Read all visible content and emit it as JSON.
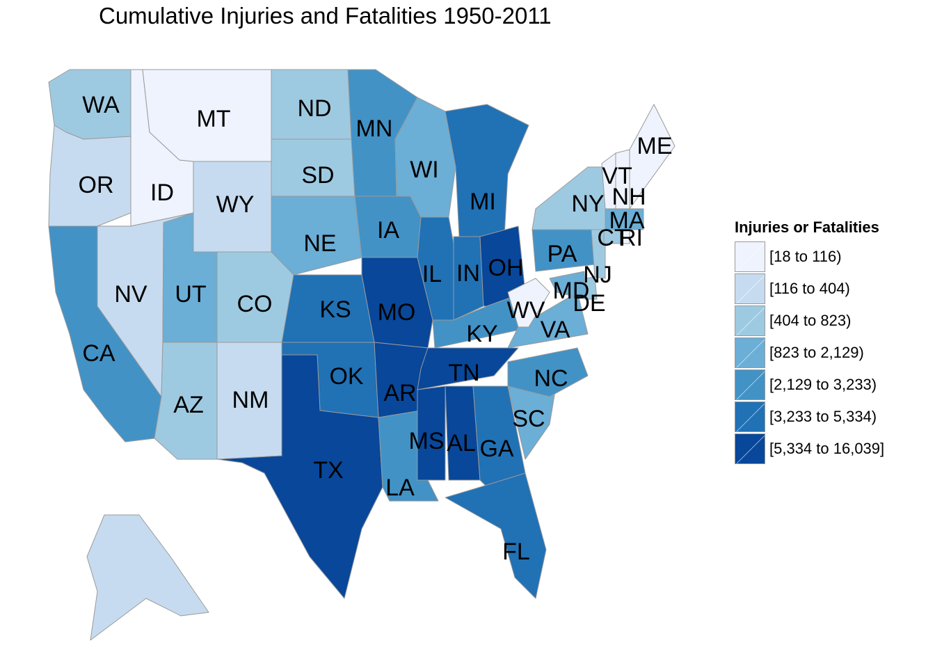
{
  "title": "Cumulative Injuries and Fatalities 1950-2011",
  "legend": {
    "title": "Injuries or Fatalities",
    "bins": [
      {
        "label": "[18 to 116)",
        "color": "#eef3fd"
      },
      {
        "label": "[116 to 404)",
        "color": "#c6dbef"
      },
      {
        "label": "[404 to 823)",
        "color": "#9ecae1"
      },
      {
        "label": "[823 to 2,129)",
        "color": "#6baed6"
      },
      {
        "label": "[2,129 to 3,233)",
        "color": "#4292c6"
      },
      {
        "label": "[3,233 to 5,334)",
        "color": "#2171b5"
      },
      {
        "label": "[5,334 to 16,039]",
        "color": "#08479a"
      }
    ]
  },
  "states": [
    {
      "abbr": "WA",
      "bin": 2
    },
    {
      "abbr": "OR",
      "bin": 1
    },
    {
      "abbr": "CA",
      "bin": 4
    },
    {
      "abbr": "ID",
      "bin": 0
    },
    {
      "abbr": "NV",
      "bin": 1
    },
    {
      "abbr": "MT",
      "bin": 0
    },
    {
      "abbr": "WY",
      "bin": 1
    },
    {
      "abbr": "UT",
      "bin": 3
    },
    {
      "abbr": "AZ",
      "bin": 2
    },
    {
      "abbr": "CO",
      "bin": 2
    },
    {
      "abbr": "NM",
      "bin": 1
    },
    {
      "abbr": "ND",
      "bin": 2
    },
    {
      "abbr": "SD",
      "bin": 2
    },
    {
      "abbr": "NE",
      "bin": 3
    },
    {
      "abbr": "KS",
      "bin": 5
    },
    {
      "abbr": "OK",
      "bin": 5
    },
    {
      "abbr": "TX",
      "bin": 6
    },
    {
      "abbr": "MN",
      "bin": 4
    },
    {
      "abbr": "IA",
      "bin": 4
    },
    {
      "abbr": "MO",
      "bin": 6
    },
    {
      "abbr": "AR",
      "bin": 6
    },
    {
      "abbr": "LA",
      "bin": 4
    },
    {
      "abbr": "WI",
      "bin": 3
    },
    {
      "abbr": "IL",
      "bin": 5
    },
    {
      "abbr": "MI",
      "bin": 5
    },
    {
      "abbr": "IN",
      "bin": 5
    },
    {
      "abbr": "OH",
      "bin": 6
    },
    {
      "abbr": "KY",
      "bin": 4
    },
    {
      "abbr": "TN",
      "bin": 6
    },
    {
      "abbr": "MS",
      "bin": 6
    },
    {
      "abbr": "AL",
      "bin": 6
    },
    {
      "abbr": "GA",
      "bin": 5
    },
    {
      "abbr": "FL",
      "bin": 5
    },
    {
      "abbr": "SC",
      "bin": 3
    },
    {
      "abbr": "NC",
      "bin": 4
    },
    {
      "abbr": "VA",
      "bin": 3
    },
    {
      "abbr": "WV",
      "bin": 0
    },
    {
      "abbr": "PA",
      "bin": 4
    },
    {
      "abbr": "MD",
      "bin": 3
    },
    {
      "abbr": "DE",
      "bin": 2
    },
    {
      "abbr": "NJ",
      "bin": 2
    },
    {
      "abbr": "NY",
      "bin": 2
    },
    {
      "abbr": "CT",
      "bin": 2
    },
    {
      "abbr": "RI",
      "bin": 0
    },
    {
      "abbr": "MA",
      "bin": 3
    },
    {
      "abbr": "VT",
      "bin": 0
    },
    {
      "abbr": "NH",
      "bin": 0
    },
    {
      "abbr": "ME",
      "bin": 0
    },
    {
      "abbr": "AK",
      "bin": 1
    }
  ]
}
